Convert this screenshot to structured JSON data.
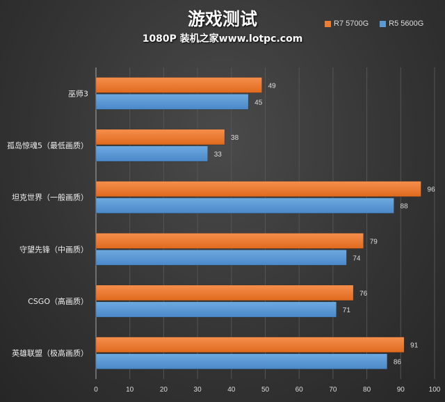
{
  "chart_data": {
    "type": "bar",
    "orientation": "horizontal",
    "title": "游戏测试",
    "subtitle": "1080P   装机之家www.lotpc.com",
    "categories": [
      "巫师3",
      "孤岛惊魂5（最低画质）",
      "坦克世界（一般画质）",
      "守望先锋（中画质）",
      "CSGO（高画质）",
      "英雄联盟（极高画质）"
    ],
    "series": [
      {
        "name": "R7 5700G",
        "color": "#ed7d31",
        "values": [
          49,
          38,
          96,
          79,
          76,
          91
        ]
      },
      {
        "name": "R5 5600G",
        "color": "#5b9bd5",
        "values": [
          45,
          33,
          88,
          74,
          71,
          86
        ]
      }
    ],
    "xlim": [
      0,
      100
    ],
    "xticks": [
      "0",
      "10",
      "20",
      "30",
      "40",
      "50",
      "60",
      "70",
      "80",
      "90",
      "100"
    ],
    "grid": true,
    "legend_position": "top-right",
    "data_labels": true
  }
}
